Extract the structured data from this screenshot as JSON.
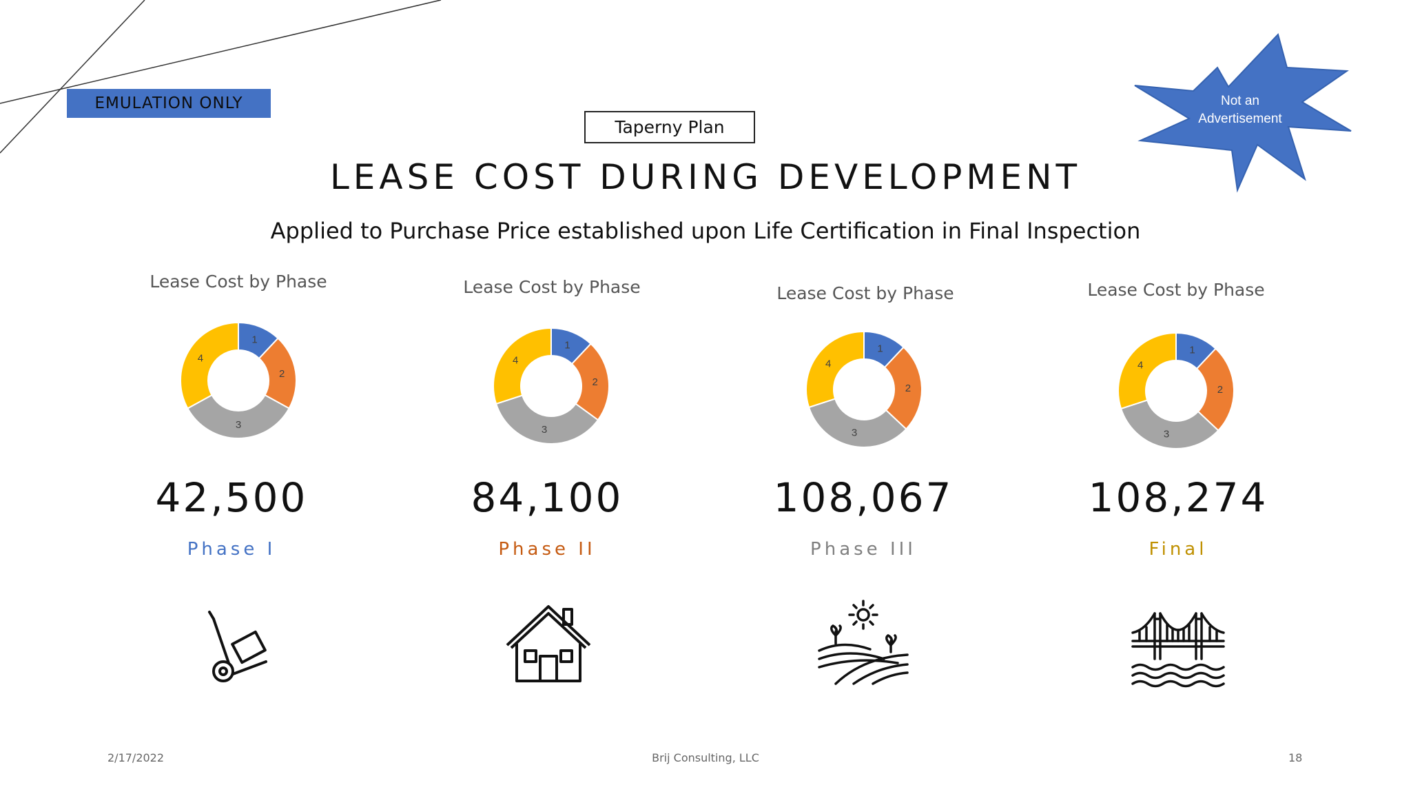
{
  "tag": "EMULATION ONLY",
  "starburst": {
    "line1": "Not an",
    "line2": "Advertisement"
  },
  "plan_label": "Taperny Plan",
  "title": "LEASE COST DURING DEVELOPMENT",
  "subtitle": "Applied to Purchase Price established upon Life Certification in Final Inspection",
  "colors": {
    "s1": "#4472c4",
    "s2": "#ed7d31",
    "s3": "#a5a5a5",
    "s4": "#ffc000"
  },
  "phases": [
    {
      "chart_title": "Lease Cost by Phase",
      "value": "42,500",
      "label": "Phase I",
      "color": "#4472c4",
      "icon": "hand-truck-icon"
    },
    {
      "chart_title": "Lease Cost by Phase",
      "value": "84,100",
      "label": "Phase II",
      "color": "#c55a11",
      "icon": "house-icon"
    },
    {
      "chart_title": "Lease Cost by Phase",
      "value": "108,067",
      "label": "Phase III",
      "color": "#7f7f7f",
      "icon": "farm-field-icon"
    },
    {
      "chart_title": "Lease Cost by Phase",
      "value": "108,274",
      "label": "Final",
      "color": "#bf9000",
      "icon": "bridge-icon"
    }
  ],
  "chart_data": [
    {
      "type": "pie",
      "title": "Lease Cost by Phase",
      "categories": [
        "1",
        "2",
        "3",
        "4"
      ],
      "values": [
        12,
        21,
        34,
        33
      ]
    },
    {
      "type": "pie",
      "title": "Lease Cost by Phase",
      "categories": [
        "1",
        "2",
        "3",
        "4"
      ],
      "values": [
        12,
        23,
        35,
        30
      ]
    },
    {
      "type": "pie",
      "title": "Lease Cost by Phase",
      "categories": [
        "1",
        "2",
        "3",
        "4"
      ],
      "values": [
        12,
        25,
        33,
        30
      ]
    },
    {
      "type": "pie",
      "title": "Lease Cost by Phase",
      "categories": [
        "1",
        "2",
        "3",
        "4"
      ],
      "values": [
        12,
        25,
        33,
        30
      ]
    }
  ],
  "footer": {
    "date": "2/17/2022",
    "company": "Brij Consulting, LLC",
    "page": "18"
  }
}
